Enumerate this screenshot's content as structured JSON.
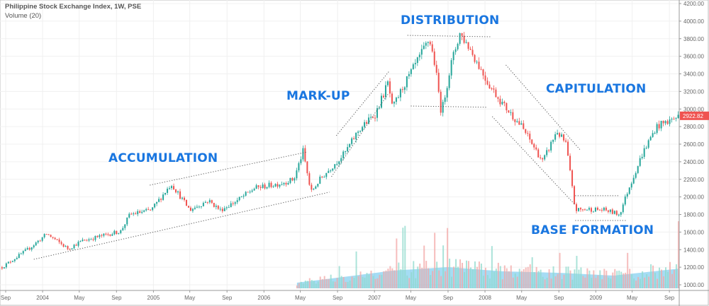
{
  "header": {
    "title": "Philippine Stock Exchange Index, 1W, PSE",
    "volume_label": "Volume (20)"
  },
  "annotations": [
    "ACCUMULATION",
    "MARK-UP",
    "DISTRIBUTION",
    "CAPITULATION",
    "BASE FORMATION"
  ],
  "colors": {
    "up": "#26a69a",
    "down": "#ef5350",
    "annotation": "#1976e0",
    "volume_ma": "#5bc0eb",
    "last_price_bg": "#ef5350"
  },
  "chart_data": {
    "type": "candlestick",
    "interval": "1W",
    "ylim": [
      1000,
      4200
    ],
    "yticks": [
      4200,
      4000,
      3800,
      3600,
      3400,
      3200,
      3000,
      2800,
      2600,
      2400,
      2200,
      2000,
      1800,
      1600,
      1400,
      1200,
      1000
    ],
    "ytick_labels": [
      "4200.00",
      "4000.00",
      "3800.00",
      "3600.00",
      "3400.00",
      "3200.00",
      "3000.00",
      "2800.00",
      "2600.00",
      "2400.00",
      "2200.00",
      "2000.00",
      "1800.00",
      "1600.00",
      "1400.00",
      "1200.00",
      "1000.00"
    ],
    "xticks": [
      {
        "date": "2003-09-01",
        "label": "Sep"
      },
      {
        "date": "2004-01-01",
        "label": "2004"
      },
      {
        "date": "2004-05-01",
        "label": "May"
      },
      {
        "date": "2004-09-01",
        "label": "Sep"
      },
      {
        "date": "2005-01-01",
        "label": "2005"
      },
      {
        "date": "2005-05-01",
        "label": "May"
      },
      {
        "date": "2005-09-01",
        "label": "Sep"
      },
      {
        "date": "2006-01-01",
        "label": "2006"
      },
      {
        "date": "2006-05-01",
        "label": "May"
      },
      {
        "date": "2006-09-01",
        "label": "Sep"
      },
      {
        "date": "2007-01-01",
        "label": "2007"
      },
      {
        "date": "2007-05-01",
        "label": "May"
      },
      {
        "date": "2007-09-01",
        "label": "Sep"
      },
      {
        "date": "2008-01-01",
        "label": "2008"
      },
      {
        "date": "2008-05-01",
        "label": "May"
      },
      {
        "date": "2008-09-01",
        "label": "Sep"
      },
      {
        "date": "2009-01-01",
        "label": "2009"
      },
      {
        "date": "2009-05-01",
        "label": "May"
      },
      {
        "date": "2009-09-01",
        "label": "Sep"
      }
    ],
    "last_price": "2922.82",
    "price_path": [
      [
        "2003-08-20",
        1200
      ],
      [
        "2003-11-20",
        1420
      ],
      [
        "2004-01-15",
        1580
      ],
      [
        "2004-03-25",
        1410
      ],
      [
        "2004-05-10",
        1500
      ],
      [
        "2004-08-10",
        1580
      ],
      [
        "2004-09-15",
        1610
      ],
      [
        "2004-10-15",
        1800
      ],
      [
        "2004-12-25",
        1850
      ],
      [
        "2005-03-01",
        2150
      ],
      [
        "2005-05-01",
        1850
      ],
      [
        "2005-07-01",
        1960
      ],
      [
        "2005-08-10",
        1850
      ],
      [
        "2005-10-01",
        1950
      ],
      [
        "2005-12-01",
        2100
      ],
      [
        "2006-02-20",
        2150
      ],
      [
        "2006-04-10",
        2200
      ],
      [
        "2006-05-10",
        2520
      ],
      [
        "2006-06-05",
        2050
      ],
      [
        "2006-07-05",
        2200
      ],
      [
        "2006-09-25",
        2500
      ],
      [
        "2006-11-10",
        2760
      ],
      [
        "2007-01-05",
        2950
      ],
      [
        "2007-02-15",
        3300
      ],
      [
        "2007-03-01",
        3000
      ],
      [
        "2007-04-05",
        3250
      ],
      [
        "2007-06-01",
        3600
      ],
      [
        "2007-07-01",
        3800
      ],
      [
        "2007-07-20",
        3500
      ],
      [
        "2007-08-10",
        2950
      ],
      [
        "2007-09-10",
        3500
      ],
      [
        "2007-10-10",
        3860
      ],
      [
        "2007-11-10",
        3700
      ],
      [
        "2008-01-10",
        3300
      ],
      [
        "2008-03-01",
        3050
      ],
      [
        "2008-05-01",
        2800
      ],
      [
        "2008-07-10",
        2400
      ],
      [
        "2008-08-25",
        2750
      ],
      [
        "2008-09-25",
        2600
      ],
      [
        "2008-10-25",
        1850
      ],
      [
        "2008-12-10",
        1860
      ],
      [
        "2009-02-01",
        1850
      ],
      [
        "2009-03-20",
        1800
      ],
      [
        "2009-04-20",
        2100
      ],
      [
        "2009-06-05",
        2500
      ],
      [
        "2009-07-20",
        2800
      ],
      [
        "2009-10-05",
        2922.82
      ]
    ],
    "trendlines": [
      [
        [
          "2004-12-20",
          2134
        ],
        [
          "2006-05-25",
          2512
        ]
      ],
      [
        [
          "2003-12-03",
          1290
        ],
        [
          "2006-08-05",
          2054
        ]
      ],
      [
        [
          "2006-08-28",
          2697
        ],
        [
          "2007-02-20",
          3436
        ]
      ],
      [
        [
          "2006-08-12",
          2230
        ],
        [
          "2007-02-15",
          3171
        ]
      ],
      [
        [
          "2007-04-20",
          3838
        ],
        [
          "2008-01-20",
          3822
        ]
      ],
      [
        [
          "2007-05-01",
          3034
        ],
        [
          "2008-01-10",
          3020
        ]
      ],
      [
        [
          "2008-03-10",
          3501
        ],
        [
          "2008-11-10",
          2536
        ]
      ],
      [
        [
          "2008-01-25",
          2914
        ],
        [
          "2008-10-25",
          1909
        ]
      ],
      [
        [
          "2008-10-25",
          2014
        ],
        [
          "2009-03-20",
          2014
        ]
      ],
      [
        [
          "2008-10-25",
          1732
        ],
        [
          "2009-04-15",
          1732
        ]
      ]
    ],
    "volume_start": "2006-04-20",
    "volume_ma_relative": [
      [
        "2006-04-20",
        0.08
      ],
      [
        "2006-09-01",
        0.15
      ],
      [
        "2007-03-01",
        0.25
      ],
      [
        "2007-09-01",
        0.3
      ],
      [
        "2008-03-01",
        0.24
      ],
      [
        "2008-09-01",
        0.22
      ],
      [
        "2009-03-01",
        0.18
      ],
      [
        "2009-10-05",
        0.28
      ]
    ]
  }
}
